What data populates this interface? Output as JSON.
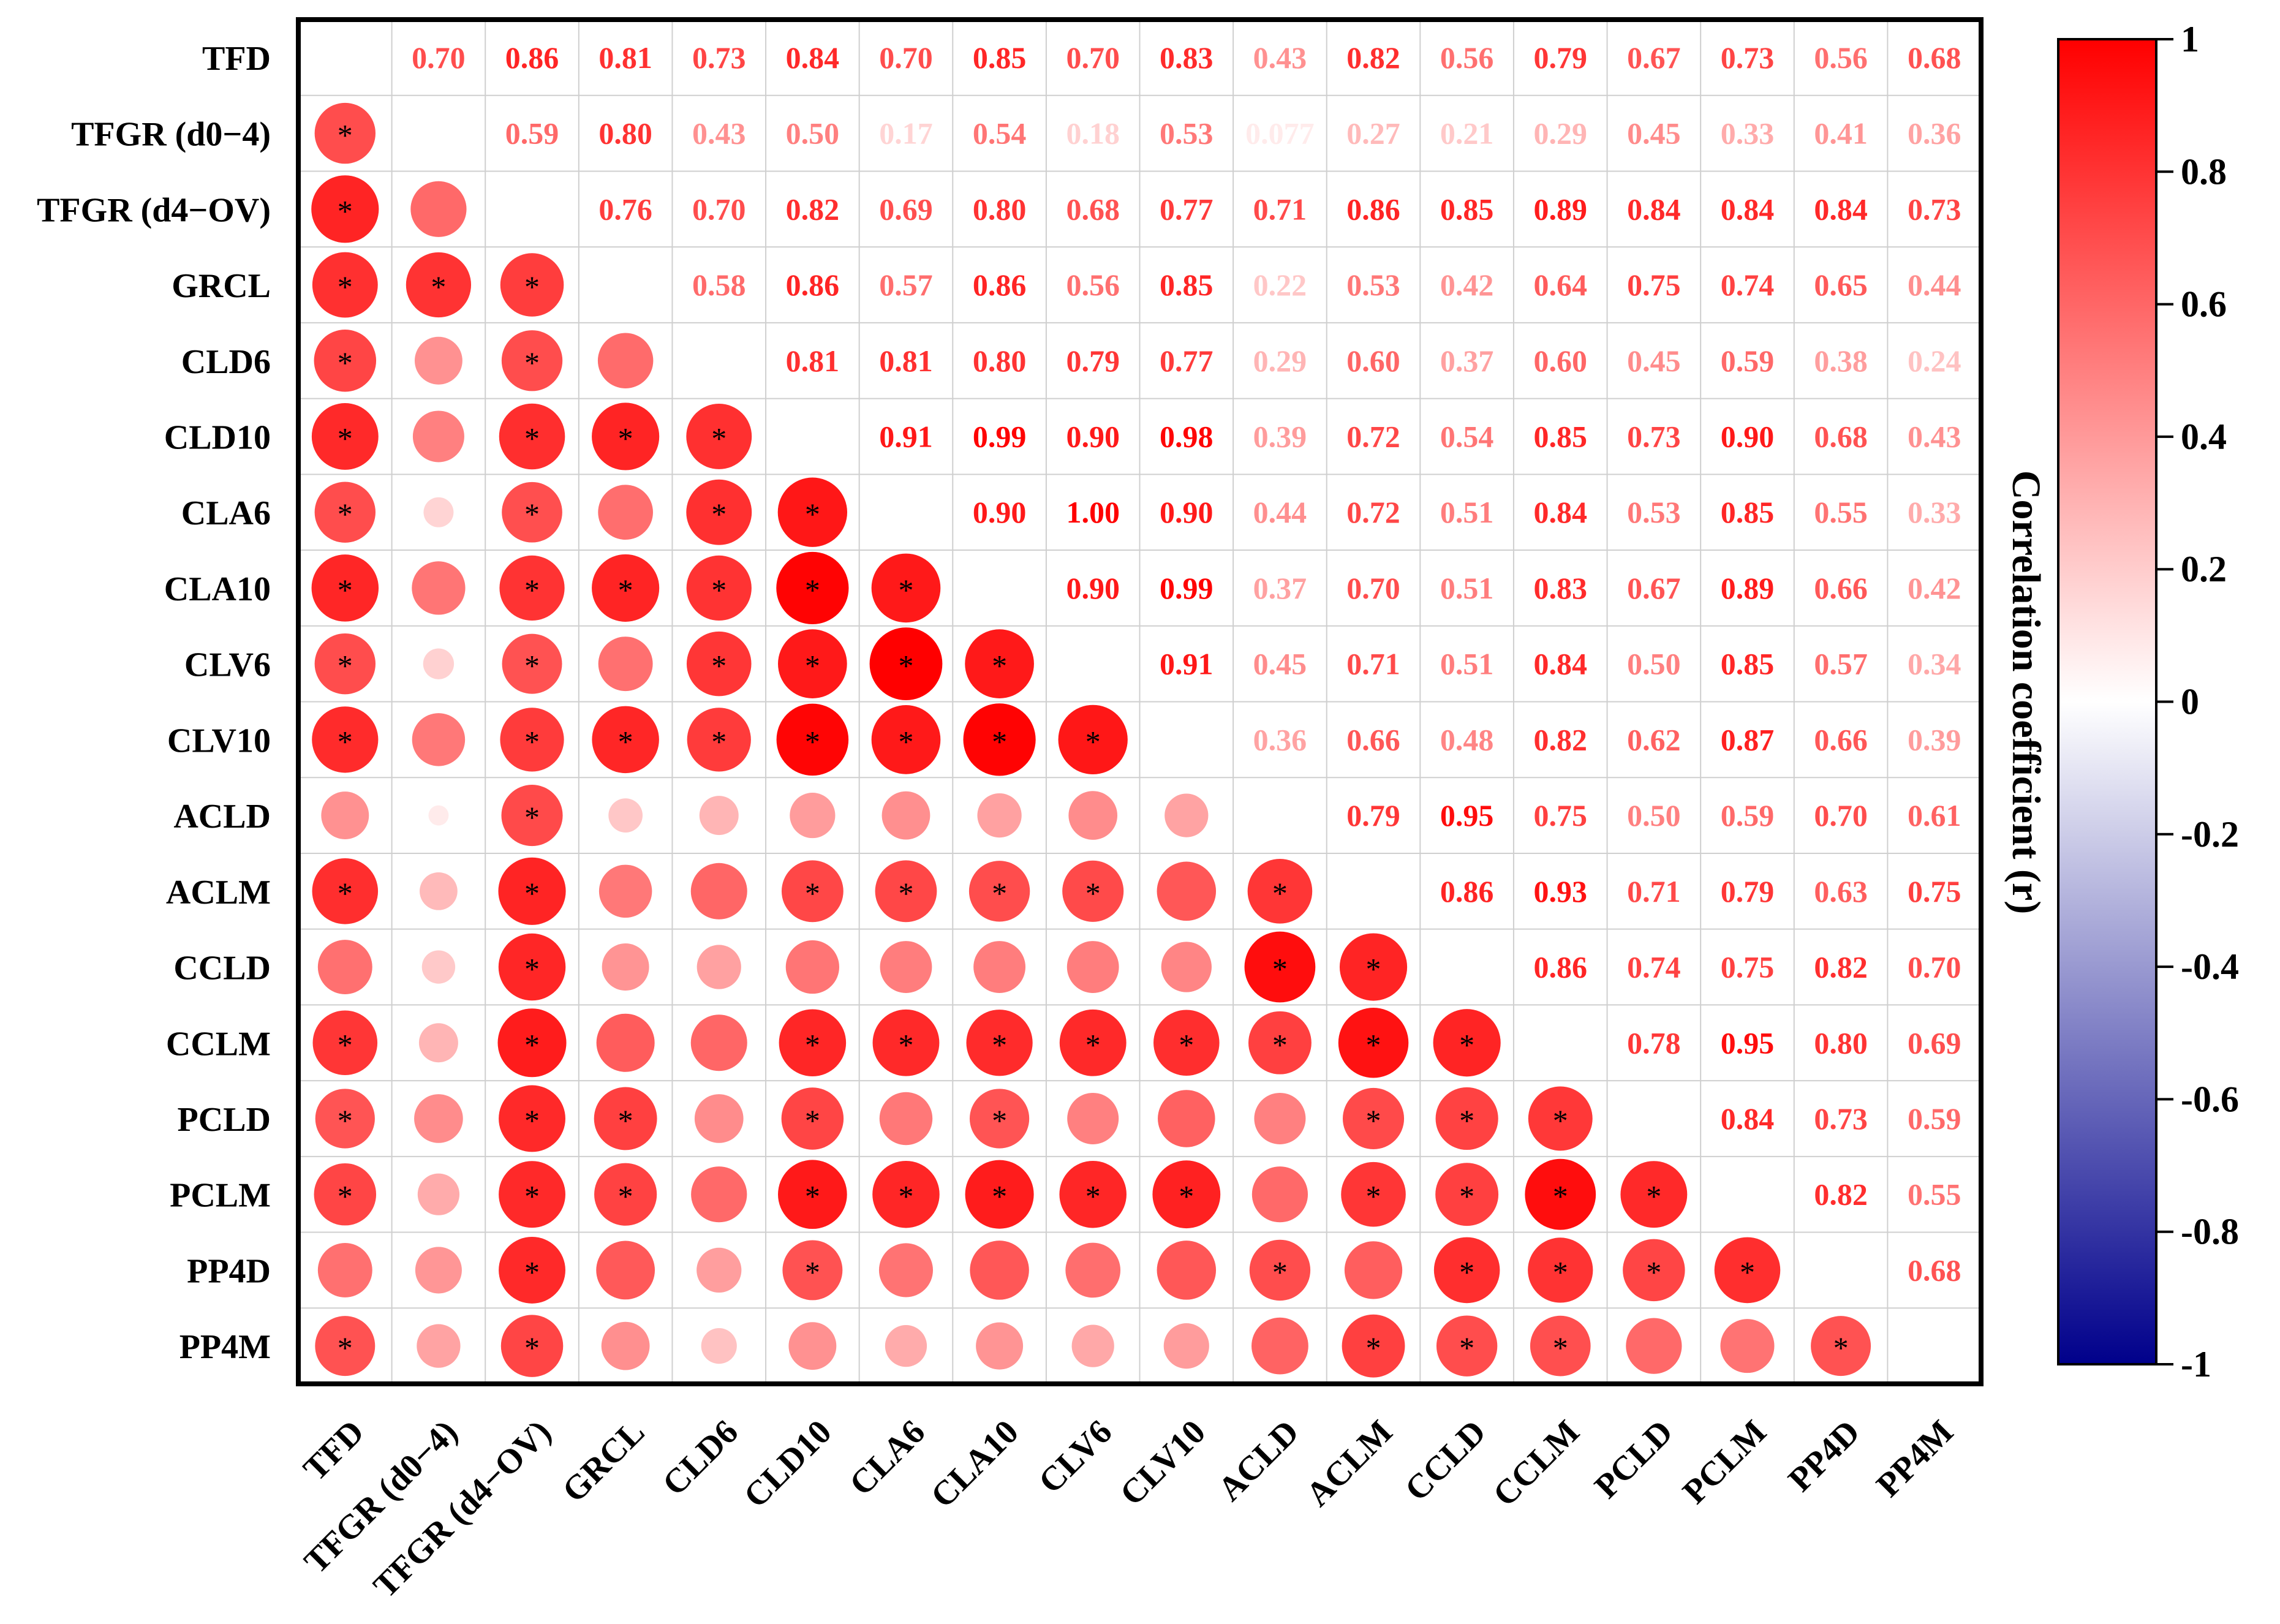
{
  "chart_data": {
    "type": "heatmap",
    "variables": [
      "TFD",
      "TFGR (d0−4)",
      "TFGR (d4−OV)",
      "GRCL",
      "CLD6",
      "CLD10",
      "CLA6",
      "CLA10",
      "CLV6",
      "CLV10",
      "ACLD",
      "ACLM",
      "CCLD",
      "CCLM",
      "PCLD",
      "PCLM",
      "PP4D",
      "PP4M"
    ],
    "upper_labels": [
      [
        "",
        "0.70",
        "0.86",
        "0.81",
        "0.73",
        "0.84",
        "0.70",
        "0.85",
        "0.70",
        "0.83",
        "0.43",
        "0.82",
        "0.56",
        "0.79",
        "0.67",
        "0.73",
        "0.56",
        "0.68"
      ],
      [
        "",
        "",
        "0.59",
        "0.80",
        "0.43",
        "0.50",
        "0.17",
        "0.54",
        "0.18",
        "0.53",
        "0.077",
        "0.27",
        "0.21",
        "0.29",
        "0.45",
        "0.33",
        "0.41",
        "0.36"
      ],
      [
        "",
        "",
        "",
        "0.76",
        "0.70",
        "0.82",
        "0.69",
        "0.80",
        "0.68",
        "0.77",
        "0.71",
        "0.86",
        "0.85",
        "0.89",
        "0.84",
        "0.84",
        "0.84",
        "0.73"
      ],
      [
        "",
        "",
        "",
        "",
        "0.58",
        "0.86",
        "0.57",
        "0.86",
        "0.56",
        "0.85",
        "0.22",
        "0.53",
        "0.42",
        "0.64",
        "0.75",
        "0.74",
        "0.65",
        "0.44"
      ],
      [
        "",
        "",
        "",
        "",
        "",
        "0.81",
        "0.81",
        "0.80",
        "0.79",
        "0.77",
        "0.29",
        "0.60",
        "0.37",
        "0.60",
        "0.45",
        "0.59",
        "0.38",
        "0.24"
      ],
      [
        "",
        "",
        "",
        "",
        "",
        "",
        "0.91",
        "0.99",
        "0.90",
        "0.98",
        "0.39",
        "0.72",
        "0.54",
        "0.85",
        "0.73",
        "0.90",
        "0.68",
        "0.43"
      ],
      [
        "",
        "",
        "",
        "",
        "",
        "",
        "",
        "0.90",
        "1.00",
        "0.90",
        "0.44",
        "0.72",
        "0.51",
        "0.84",
        "0.53",
        "0.85",
        "0.55",
        "0.33"
      ],
      [
        "",
        "",
        "",
        "",
        "",
        "",
        "",
        "",
        "0.90",
        "0.99",
        "0.37",
        "0.70",
        "0.51",
        "0.83",
        "0.67",
        "0.89",
        "0.66",
        "0.42"
      ],
      [
        "",
        "",
        "",
        "",
        "",
        "",
        "",
        "",
        "",
        "0.91",
        "0.45",
        "0.71",
        "0.51",
        "0.84",
        "0.50",
        "0.85",
        "0.57",
        "0.34"
      ],
      [
        "",
        "",
        "",
        "",
        "",
        "",
        "",
        "",
        "",
        "",
        "0.36",
        "0.66",
        "0.48",
        "0.82",
        "0.62",
        "0.87",
        "0.66",
        "0.39"
      ],
      [
        "",
        "",
        "",
        "",
        "",
        "",
        "",
        "",
        "",
        "",
        "",
        "0.79",
        "0.95",
        "0.75",
        "0.50",
        "0.59",
        "0.70",
        "0.61"
      ],
      [
        "",
        "",
        "",
        "",
        "",
        "",
        "",
        "",
        "",
        "",
        "",
        "",
        "0.86",
        "0.93",
        "0.71",
        "0.79",
        "0.63",
        "0.75"
      ],
      [
        "",
        "",
        "",
        "",
        "",
        "",
        "",
        "",
        "",
        "",
        "",
        "",
        "",
        "0.86",
        "0.74",
        "0.75",
        "0.82",
        "0.70"
      ],
      [
        "",
        "",
        "",
        "",
        "",
        "",
        "",
        "",
        "",
        "",
        "",
        "",
        "",
        "",
        "0.78",
        "0.95",
        "0.80",
        "0.69"
      ],
      [
        "",
        "",
        "",
        "",
        "",
        "",
        "",
        "",
        "",
        "",
        "",
        "",
        "",
        "",
        "",
        "0.84",
        "0.73",
        "0.59"
      ],
      [
        "",
        "",
        "",
        "",
        "",
        "",
        "",
        "",
        "",
        "",
        "",
        "",
        "",
        "",
        "",
        "",
        "0.82",
        "0.55"
      ],
      [
        "",
        "",
        "",
        "",
        "",
        "",
        "",
        "",
        "",
        "",
        "",
        "",
        "",
        "",
        "",
        "",
        "",
        "0.68"
      ],
      [
        "",
        "",
        "",
        "",
        "",
        "",
        "",
        "",
        "",
        "",
        "",
        "",
        "",
        "",
        "",
        "",
        "",
        ""
      ]
    ],
    "significance_marker": "*",
    "significant_pairs": [
      [
        1,
        0
      ],
      [
        2,
        0
      ],
      [
        3,
        0
      ],
      [
        4,
        0
      ],
      [
        5,
        0
      ],
      [
        6,
        0
      ],
      [
        7,
        0
      ],
      [
        8,
        0
      ],
      [
        9,
        0
      ],
      [
        11,
        0
      ],
      [
        13,
        0
      ],
      [
        14,
        0
      ],
      [
        15,
        0
      ],
      [
        17,
        0
      ],
      [
        3,
        1
      ],
      [
        3,
        2
      ],
      [
        4,
        2
      ],
      [
        5,
        2
      ],
      [
        6,
        2
      ],
      [
        7,
        2
      ],
      [
        8,
        2
      ],
      [
        9,
        2
      ],
      [
        10,
        2
      ],
      [
        11,
        2
      ],
      [
        12,
        2
      ],
      [
        13,
        2
      ],
      [
        14,
        2
      ],
      [
        15,
        2
      ],
      [
        16,
        2
      ],
      [
        17,
        2
      ],
      [
        5,
        3
      ],
      [
        7,
        3
      ],
      [
        9,
        3
      ],
      [
        14,
        3
      ],
      [
        15,
        3
      ],
      [
        5,
        4
      ],
      [
        6,
        4
      ],
      [
        7,
        4
      ],
      [
        8,
        4
      ],
      [
        9,
        4
      ],
      [
        6,
        5
      ],
      [
        7,
        5
      ],
      [
        8,
        5
      ],
      [
        9,
        5
      ],
      [
        11,
        5
      ],
      [
        13,
        5
      ],
      [
        14,
        5
      ],
      [
        15,
        5
      ],
      [
        16,
        5
      ],
      [
        7,
        6
      ],
      [
        8,
        6
      ],
      [
        9,
        6
      ],
      [
        11,
        6
      ],
      [
        13,
        6
      ],
      [
        15,
        6
      ],
      [
        8,
        7
      ],
      [
        9,
        7
      ],
      [
        11,
        7
      ],
      [
        13,
        7
      ],
      [
        14,
        7
      ],
      [
        15,
        7
      ],
      [
        9,
        8
      ],
      [
        11,
        8
      ],
      [
        13,
        8
      ],
      [
        15,
        8
      ],
      [
        13,
        9
      ],
      [
        15,
        9
      ],
      [
        11,
        10
      ],
      [
        12,
        10
      ],
      [
        13,
        10
      ],
      [
        16,
        10
      ],
      [
        12,
        11
      ],
      [
        13,
        11
      ],
      [
        14,
        11
      ],
      [
        15,
        11
      ],
      [
        17,
        11
      ],
      [
        13,
        12
      ],
      [
        14,
        12
      ],
      [
        15,
        12
      ],
      [
        16,
        12
      ],
      [
        17,
        12
      ],
      [
        14,
        13
      ],
      [
        15,
        13
      ],
      [
        16,
        13
      ],
      [
        17,
        13
      ],
      [
        15,
        14
      ],
      [
        16,
        14
      ],
      [
        16,
        15
      ],
      [
        17,
        16
      ]
    ],
    "colorbar": {
      "label": "Correlation coefficient (r)",
      "range": [
        -1,
        1
      ],
      "ticks": [
        "1",
        "0.8",
        "0.6",
        "0.4",
        "0.2",
        "0",
        "-0.2",
        "-0.4",
        "-0.6",
        "-0.8",
        "-1"
      ],
      "colors": {
        "high": "#ff0000",
        "mid": "#ffffff",
        "low": "#00008b"
      }
    },
    "grid": true,
    "legend": "right"
  }
}
